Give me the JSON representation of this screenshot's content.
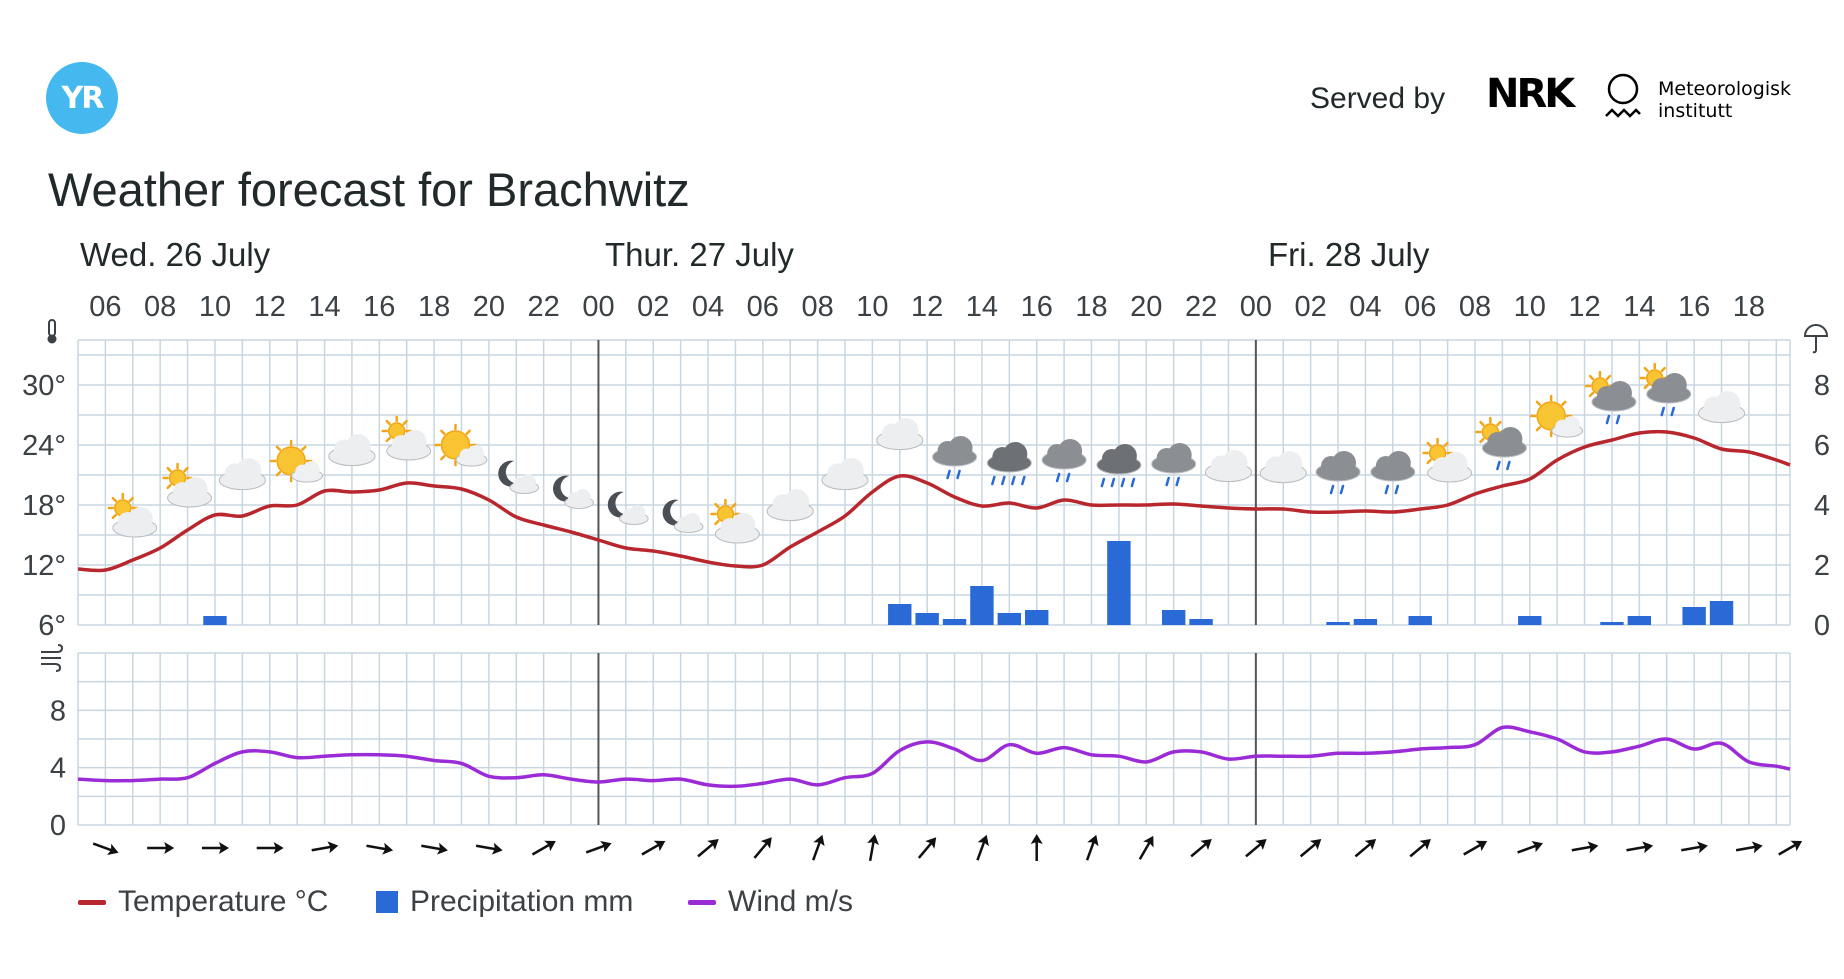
{
  "header": {
    "logo_text": "YR",
    "served_by": "Served by",
    "nrk_text": "NRK",
    "met_line1": "Meteorologisk",
    "met_line2": "institutt"
  },
  "title": "Weather forecast for Brachwitz",
  "legend": {
    "temperature": "Temperature °C",
    "precipitation": "Precipitation mm",
    "wind": "Wind m/s"
  },
  "colors": {
    "temperature": "#b8262e",
    "precipitation": "#2a6ad6",
    "wind": "#9b2bd6",
    "grid": "#c9d6e0",
    "day_separator": "#555555",
    "logo": "#45b8f0"
  },
  "chart_data": [
    {
      "type": "line",
      "name": "temperature-precipitation",
      "days": [
        {
          "label": "Wed. 26 July",
          "start_hour": 6
        },
        {
          "label": "Thur. 27 July",
          "start_hour": 24
        },
        {
          "label": "Fri. 28 July",
          "start_hour": 48
        }
      ],
      "x_tick_labels": [
        "06",
        "08",
        "10",
        "12",
        "14",
        "16",
        "18",
        "20",
        "22",
        "00",
        "02",
        "04",
        "06",
        "08",
        "10",
        "12",
        "14",
        "16",
        "18",
        "20",
        "22",
        "00",
        "02",
        "04",
        "06",
        "08",
        "10",
        "12",
        "14",
        "16",
        "18"
      ],
      "x_unit": "hours from 00:00 Wed. 26 July",
      "xlim": [
        5,
        67.5
      ],
      "temp_ylim": [
        6,
        34.5
      ],
      "temp_ticks": [
        "30°",
        "24°",
        "18°",
        "12°",
        "6°"
      ],
      "temp_tick_values": [
        30,
        24,
        18,
        12,
        6
      ],
      "precip_ylim": [
        0,
        9.5
      ],
      "precip_ticks": [
        "8",
        "6",
        "4",
        "2",
        "0"
      ],
      "precip_tick_values": [
        8,
        6,
        4,
        2,
        0
      ],
      "temperature": {
        "hours": [
          5,
          6,
          7,
          8,
          9,
          10,
          11,
          12,
          13,
          14,
          15,
          16,
          17,
          18,
          19,
          20,
          21,
          22,
          23,
          24,
          25,
          26,
          27,
          28,
          29,
          30,
          31,
          32,
          33,
          34,
          35,
          36,
          37,
          38,
          39,
          40,
          41,
          42,
          43,
          44,
          45,
          46,
          47,
          48,
          49,
          50,
          51,
          52,
          53,
          54,
          55,
          56,
          57,
          58,
          59,
          60,
          61,
          62,
          63,
          64,
          65,
          66,
          67,
          67.5
        ],
        "values": [
          11.6,
          11.5,
          12.5,
          13.7,
          15.5,
          17,
          16.9,
          17.9,
          18.0,
          19.4,
          19.3,
          19.5,
          20.2,
          19.9,
          19.6,
          18.5,
          16.8,
          16.0,
          15.3,
          14.5,
          13.7,
          13.4,
          12.9,
          12.3,
          11.9,
          12.0,
          13.8,
          15.3,
          16.9,
          19.3,
          20.9,
          20.2,
          18.8,
          17.9,
          18.2,
          17.7,
          18.5,
          18.0,
          18.0,
          18.0,
          18.1,
          17.9,
          17.7,
          17.6,
          17.6,
          17.3,
          17.3,
          17.4,
          17.3,
          17.6,
          18.0,
          19.1,
          19.9,
          20.6,
          22.5,
          23.8,
          24.5,
          25.2,
          25.3,
          24.7,
          23.6,
          23.3,
          22.5,
          22.0
        ]
      },
      "precipitation": {
        "hours": [
          10,
          35,
          36,
          37,
          38,
          39,
          40,
          43,
          45,
          46,
          51,
          52,
          54,
          58,
          61,
          62,
          64,
          65
        ],
        "values": [
          0.3,
          0.7,
          0.4,
          0.2,
          1.3,
          0.4,
          0.5,
          2.8,
          0.5,
          0.2,
          0.1,
          0.2,
          0.3,
          0.3,
          0.1,
          0.3,
          0.6,
          0.8
        ]
      },
      "symbols": [
        {
          "hour": 7,
          "icon": "partly-cloudy-day-icon"
        },
        {
          "hour": 9,
          "icon": "partly-cloudy-day-icon"
        },
        {
          "hour": 11,
          "icon": "cloudy-icon"
        },
        {
          "hour": 13,
          "icon": "fair-day-icon"
        },
        {
          "hour": 15,
          "icon": "cloudy-icon"
        },
        {
          "hour": 17,
          "icon": "partly-cloudy-day-icon"
        },
        {
          "hour": 19,
          "icon": "fair-day-icon"
        },
        {
          "hour": 21,
          "icon": "partly-cloudy-night-icon"
        },
        {
          "hour": 23,
          "icon": "partly-cloudy-night-icon"
        },
        {
          "hour": 25,
          "icon": "partly-cloudy-night-icon"
        },
        {
          "hour": 27,
          "icon": "partly-cloudy-night-icon"
        },
        {
          "hour": 29,
          "icon": "partly-cloudy-day-icon"
        },
        {
          "hour": 31,
          "icon": "cloudy-icon"
        },
        {
          "hour": 33,
          "icon": "cloudy-icon"
        },
        {
          "hour": 35,
          "icon": "cloudy-icon"
        },
        {
          "hour": 37,
          "icon": "light-rain-icon"
        },
        {
          "hour": 39,
          "icon": "rain-icon"
        },
        {
          "hour": 41,
          "icon": "light-rain-icon"
        },
        {
          "hour": 43,
          "icon": "rain-icon"
        },
        {
          "hour": 45,
          "icon": "light-rain-icon"
        },
        {
          "hour": 47,
          "icon": "cloudy-icon"
        },
        {
          "hour": 49,
          "icon": "cloudy-icon"
        },
        {
          "hour": 51,
          "icon": "light-rain-icon"
        },
        {
          "hour": 53,
          "icon": "light-rain-icon"
        },
        {
          "hour": 55,
          "icon": "partly-cloudy-day-icon"
        },
        {
          "hour": 57,
          "icon": "light-rain-sun-icon"
        },
        {
          "hour": 59,
          "icon": "fair-day-icon"
        },
        {
          "hour": 61,
          "icon": "light-rain-sun-icon"
        },
        {
          "hour": 63,
          "icon": "light-rain-sun-icon"
        },
        {
          "hour": 65,
          "icon": "cloudy-icon"
        }
      ],
      "grid": true
    },
    {
      "type": "line",
      "name": "wind",
      "ylim": [
        0,
        12
      ],
      "ticks": [
        "8",
        "4",
        "0"
      ],
      "tick_values": [
        8,
        4,
        0
      ],
      "hours": [
        5,
        6,
        7,
        8,
        9,
        10,
        11,
        12,
        13,
        14,
        15,
        16,
        17,
        18,
        19,
        20,
        21,
        22,
        23,
        24,
        25,
        26,
        27,
        28,
        29,
        30,
        31,
        32,
        33,
        34,
        35,
        36,
        37,
        38,
        39,
        40,
        41,
        42,
        43,
        44,
        45,
        46,
        47,
        48,
        49,
        50,
        51,
        52,
        53,
        54,
        55,
        56,
        57,
        58,
        59,
        60,
        61,
        62,
        63,
        64,
        65,
        66,
        67,
        67.5
      ],
      "values": [
        3.2,
        3.1,
        3.1,
        3.2,
        3.3,
        4.3,
        5.1,
        5.1,
        4.7,
        4.8,
        4.9,
        4.9,
        4.8,
        4.5,
        4.3,
        3.4,
        3.3,
        3.5,
        3.2,
        3.0,
        3.2,
        3.1,
        3.2,
        2.8,
        2.7,
        2.9,
        3.2,
        2.8,
        3.3,
        3.6,
        5.2,
        5.8,
        5.3,
        4.5,
        5.6,
        5.0,
        5.4,
        4.9,
        4.8,
        4.4,
        5.1,
        5.1,
        4.6,
        4.8,
        4.8,
        4.8,
        5.0,
        5.0,
        5.1,
        5.3,
        5.4,
        5.6,
        6.8,
        6.5,
        6.0,
        5.1,
        5.1,
        5.5,
        6.0,
        5.3,
        5.7,
        4.4,
        4.1,
        3.9
      ],
      "grid": true
    },
    {
      "type": "scatter",
      "name": "wind-direction",
      "hours": [
        6,
        8,
        10,
        12,
        14,
        16,
        18,
        20,
        22,
        24,
        26,
        28,
        30,
        32,
        34,
        36,
        38,
        40,
        42,
        44,
        46,
        48,
        50,
        52,
        54,
        56,
        58,
        60,
        62,
        64,
        66,
        67.5
      ],
      "angles_deg": [
        20,
        0,
        0,
        0,
        -10,
        10,
        10,
        10,
        -30,
        -20,
        -30,
        -40,
        -50,
        -70,
        -80,
        -50,
        -70,
        -90,
        -70,
        -60,
        -40,
        -40,
        -40,
        -40,
        -40,
        -30,
        -20,
        -10,
        -10,
        -10,
        -10,
        -30
      ]
    }
  ]
}
